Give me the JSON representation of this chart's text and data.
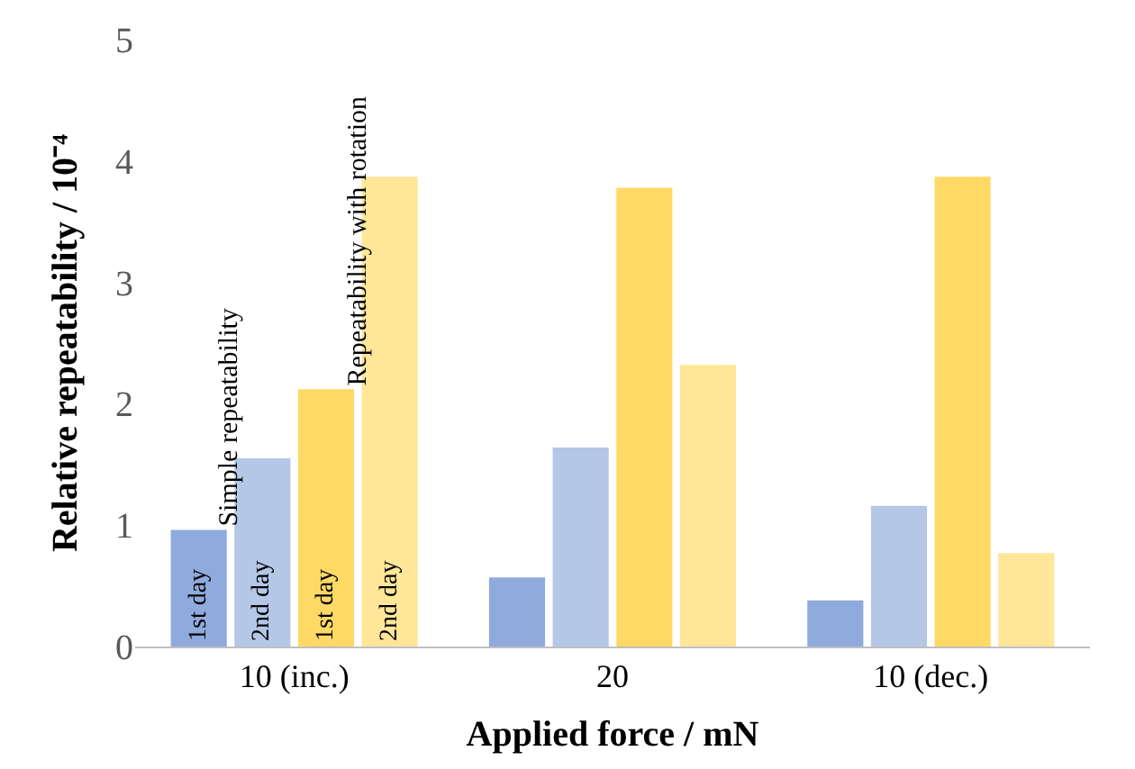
{
  "chart_data": {
    "type": "bar",
    "xlabel": "Applied force / mN",
    "ylabel": "Relative repeatability / 10⁻⁴",
    "categories": [
      "10 (inc.)",
      "20",
      "10 (dec.)"
    ],
    "series": [
      {
        "name": "1st day",
        "color": "#8faadc",
        "values": [
          0.96,
          0.57,
          0.38
        ]
      },
      {
        "name": "2nd day",
        "color": "#b4c7e7",
        "values": [
          1.55,
          1.64,
          1.16
        ]
      },
      {
        "name": "1st day",
        "color": "#ffd966",
        "values": [
          2.12,
          3.78,
          3.87
        ]
      },
      {
        "name": "2nd day",
        "color": "#ffe699",
        "values": [
          3.87,
          2.32,
          0.77
        ]
      }
    ],
    "annotations": [
      "Simple repeatability",
      "Repeatability with rotation"
    ],
    "ylim": [
      0,
      5
    ],
    "yticks": [
      0,
      1,
      2,
      3,
      4,
      5
    ],
    "legend": false
  }
}
